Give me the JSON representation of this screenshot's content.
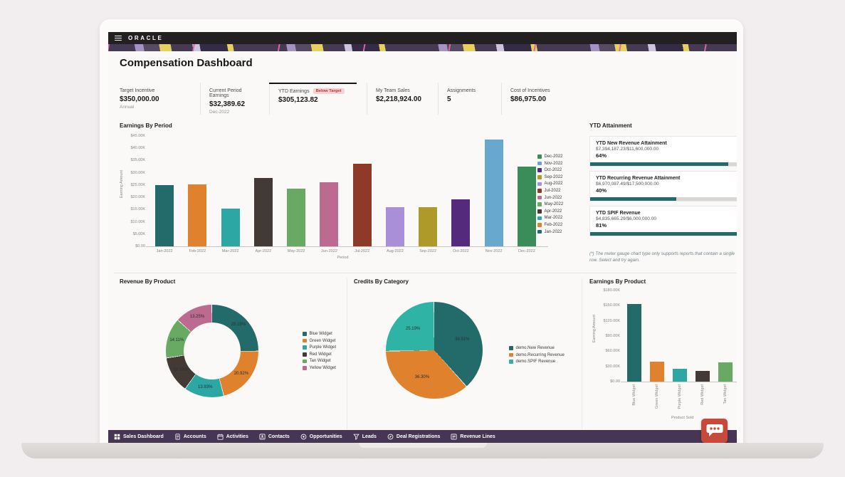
{
  "header": {
    "brand": "ORACLE",
    "menu_icon": "hamburger-menu-icon"
  },
  "page_title": "Compensation Dashboard",
  "kpis": [
    {
      "label": "Target Incentive",
      "value": "$350,000.00",
      "sub": "Annual",
      "selected": false
    },
    {
      "label": "Current Period Earnings",
      "value": "$32,389.62",
      "sub": "Dec-2022",
      "selected": false
    },
    {
      "label": "YTD Earnings",
      "value": "$305,123.82",
      "badge": "Below Target",
      "selected": true
    },
    {
      "label": "My Team Sales",
      "value": "$2,218,924.00",
      "selected": false
    },
    {
      "label": "Assignments",
      "value": "5",
      "selected": false
    },
    {
      "label": "Cost of Incentives",
      "value": "$86,975.00",
      "selected": false
    }
  ],
  "chart_data": [
    {
      "id": "earnings_by_period",
      "type": "bar",
      "title": "Earnings By Period",
      "xlabel": "Period",
      "ylabel": "Earning Amount",
      "categories": [
        "Jan-2022",
        "Feb-2022",
        "Mar-2022",
        "Apr-2022",
        "May-2022",
        "Jun-2022",
        "Jul-2022",
        "Aug-2022",
        "Sep-2022",
        "Oct-2022",
        "Nov-2022",
        "Dec-2022"
      ],
      "values": [
        25000,
        25200,
        15400,
        27900,
        23600,
        26200,
        33600,
        16000,
        16000,
        19300,
        43700,
        32500
      ],
      "colors": [
        "#236b6a",
        "#e0812e",
        "#2da7a3",
        "#443a35",
        "#68a963",
        "#bd6a90",
        "#8e3a28",
        "#a98fd8",
        "#ad9a28",
        "#542a7d",
        "#68a8cf",
        "#3a8d58"
      ],
      "ylim": [
        0,
        45000
      ],
      "yticks": [
        "$45.00K",
        "$40.00K",
        "$35.00K",
        "$30.00K",
        "$25.00K",
        "$20.00K",
        "$15.00K",
        "$10.00K",
        "$5.00K",
        "$0.00"
      ],
      "legend_position": "right",
      "legend_order": "reversed",
      "grid": false
    },
    {
      "id": "revenue_by_product",
      "type": "donut",
      "title": "Revenue By Product",
      "slices": [
        {
          "label": "Blue Widget",
          "pct": 25.19,
          "color": "#236b6a"
        },
        {
          "label": "Green Widget",
          "pct": 20.92,
          "color": "#e0812e"
        },
        {
          "label": "Purple Widget",
          "pct": 13.93,
          "color": "#2da7a3"
        },
        {
          "label": "Red Widget",
          "pct": 12.73,
          "color": "#443a35"
        },
        {
          "label": "Tan Widget",
          "pct": 14.11,
          "color": "#68a963"
        },
        {
          "label": "Yellow Widget",
          "pct": 13.25,
          "color": "#bd6a90"
        }
      ],
      "legend_position": "right"
    },
    {
      "id": "credits_by_category",
      "type": "pie",
      "title": "Credits By Category",
      "slices": [
        {
          "label": "demo.New Revenue",
          "pct": 38.51,
          "color": "#236b6a"
        },
        {
          "label": "demo.Recurring Revenue",
          "pct": 36.3,
          "color": "#e0812e"
        },
        {
          "label": "demo.SPIF Revenue",
          "pct": 25.19,
          "color": "#2fb3a4"
        }
      ],
      "legend_position": "right"
    },
    {
      "id": "earnings_by_product",
      "type": "bar",
      "title": "Earnings By Product",
      "xlabel": "Product Sold",
      "ylabel": "Earning Amount",
      "categories": [
        "Blue Widget",
        "Green Widget",
        "Purple Widget",
        "Red Widget",
        "Tan Widget"
      ],
      "values": [
        153000,
        39700,
        24800,
        21500,
        37400
      ],
      "colors": [
        "#236b6a",
        "#e0812e",
        "#2da7a3",
        "#443a35",
        "#68a963"
      ],
      "ylim": [
        0,
        180000
      ],
      "yticks": [
        "$180.00K",
        "$150.00K",
        "$120.00K",
        "$90.00K",
        "$60.00K",
        "$30.00K",
        "$0.00"
      ],
      "grid": false
    }
  ],
  "attainment": {
    "title": "YTD Attainment",
    "items": [
      {
        "name": "YTD New Revenue Attainment",
        "fraction": "$7,394,187.23/$11,600,000.00",
        "pct": "64%",
        "fill_pct": 85
      },
      {
        "name": "YTD Recurring Revenue Attainment",
        "fraction": "$6,970,087.49/$17,500,000.00",
        "pct": "40%",
        "fill_pct": 53
      },
      {
        "name": "YTD SPIF Revenue",
        "fraction": "$4,835,665.29/$6,000,000.00",
        "pct": "81%",
        "fill_pct": 100
      }
    ],
    "footnote": "(*) The meter gauge chart type only supports reports that contain a single row. Select and try again."
  },
  "navbar": {
    "items": [
      {
        "label": "Sales Dashboard",
        "icon": "dashboard-icon"
      },
      {
        "label": "Accounts",
        "icon": "accounts-icon"
      },
      {
        "label": "Activities",
        "icon": "calendar-icon"
      },
      {
        "label": "Contacts",
        "icon": "contact-card-icon"
      },
      {
        "label": "Opportunities",
        "icon": "target-icon"
      },
      {
        "label": "Leads",
        "icon": "funnel-icon"
      },
      {
        "label": "Deal Registrations",
        "icon": "compass-icon"
      },
      {
        "label": "Revenue Lines",
        "icon": "list-icon"
      }
    ]
  },
  "chat": {
    "icon": "chat-bubble-icon"
  },
  "colors": {
    "accent_teal": "#236b6a",
    "navbar_purple": "#473554",
    "chat_red": "#c7493a",
    "badge_bg": "#f7d2d5",
    "badge_text": "#bb392c",
    "appbar_black": "#232021"
  }
}
